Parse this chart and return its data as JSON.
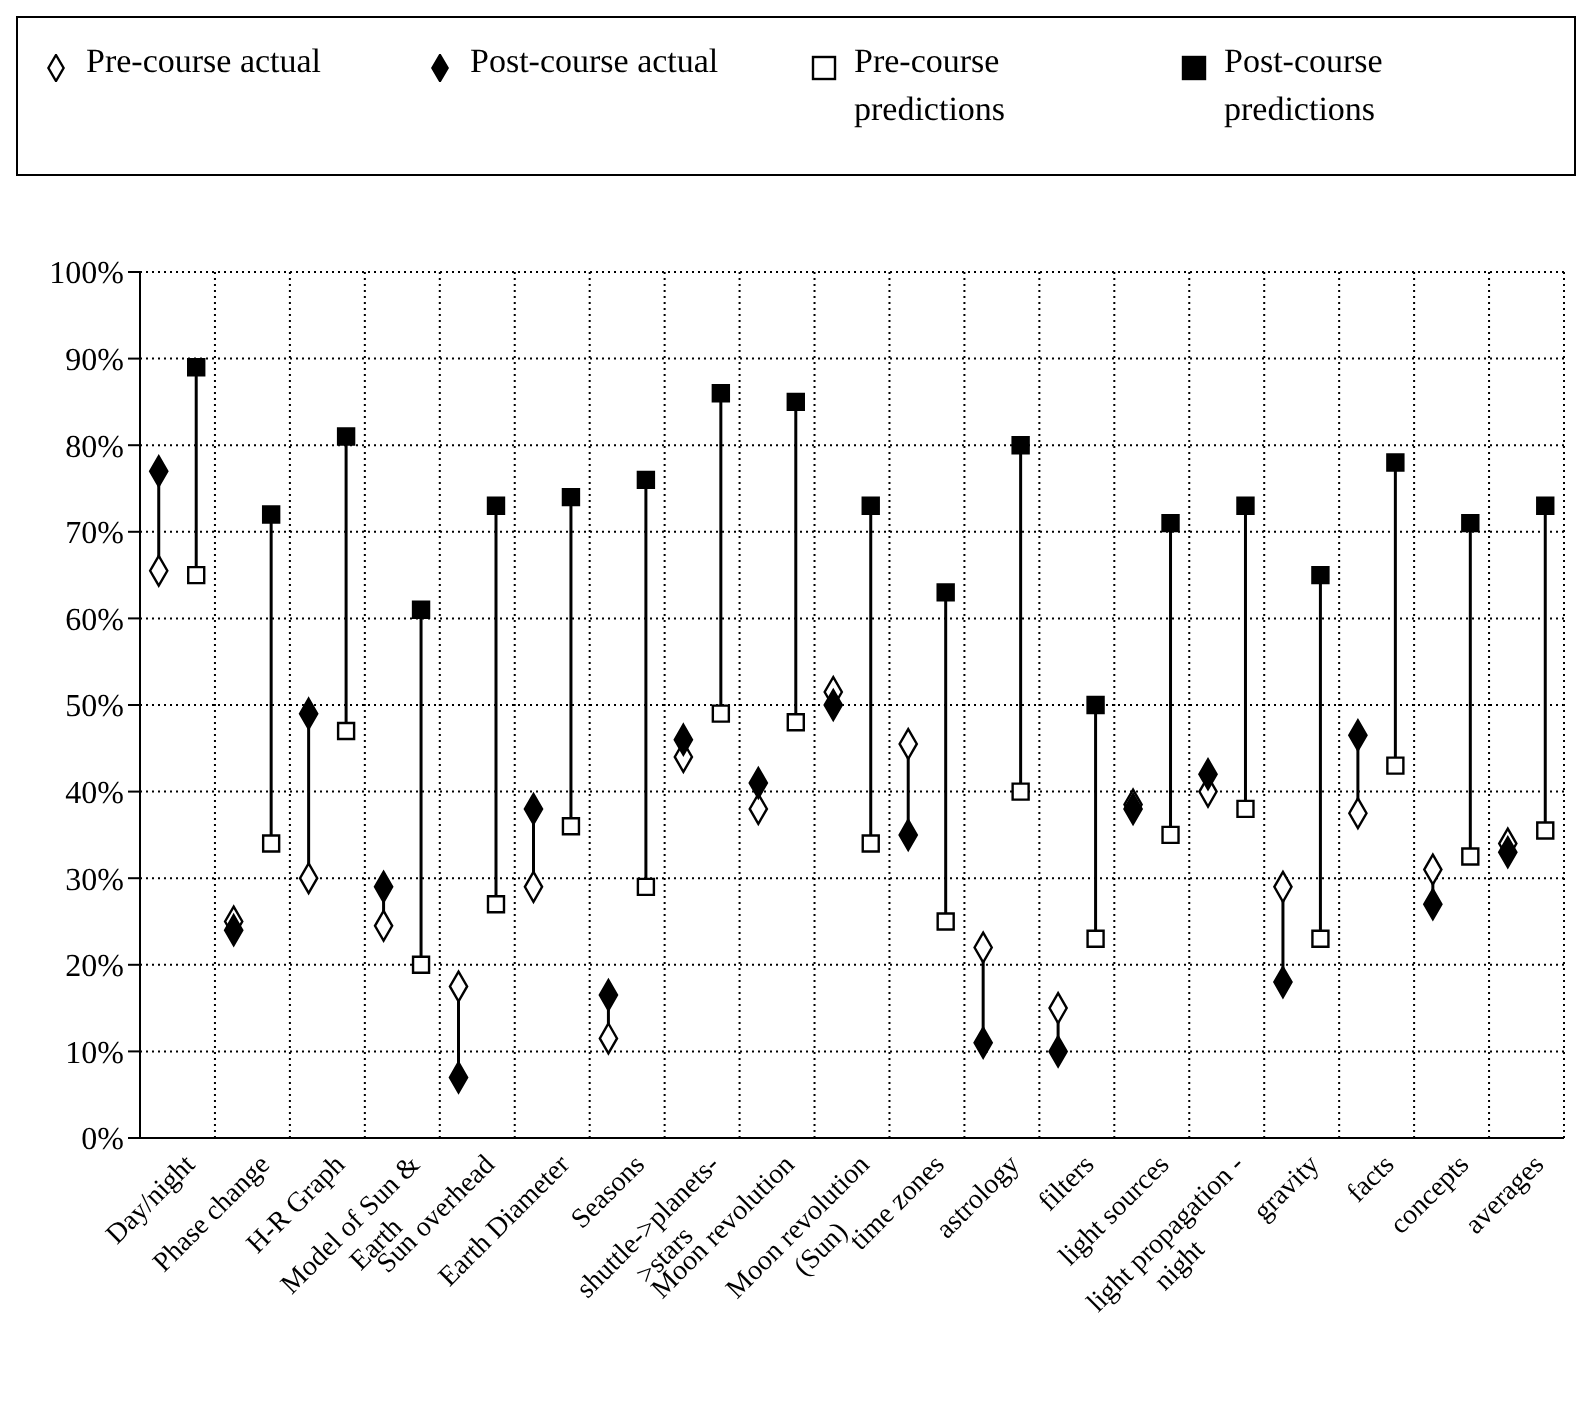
{
  "chart_data": {
    "type": "scatter",
    "categories": [
      null,
      "Day/night",
      null,
      "Phase change",
      null,
      "H-R Graph",
      null,
      "Model of Sun & Earth",
      null,
      "Sun overhead",
      null,
      "Earth Diameter",
      null,
      "Seasons",
      null,
      "shuttle->planets->stars",
      null,
      "Moon revolution",
      null,
      "Moon revolution (Sun)",
      null,
      "time zones",
      null,
      "astrology",
      null,
      "filters",
      null,
      "light sources",
      null,
      "light propagation - night",
      null,
      "gravity",
      null,
      "facts",
      null,
      "concepts",
      null,
      "averages"
    ],
    "series": [
      {
        "name": "Pre-course actual",
        "color": "#ffffff",
        "marker": "diamond",
        "values": [
          65.5,
          null,
          25,
          null,
          30,
          null,
          24.5,
          null,
          17.5,
          null,
          29,
          null,
          11.5,
          null,
          44,
          null,
          38,
          null,
          51.5,
          null,
          45.5,
          null,
          22,
          null,
          15,
          null,
          38.5,
          null,
          40,
          null,
          29,
          null,
          37.5,
          null,
          31,
          null,
          34,
          null
        ]
      },
      {
        "name": "Post-course actual",
        "color": "#000000",
        "marker": "diamond",
        "values": [
          77,
          null,
          24,
          null,
          49,
          null,
          29,
          null,
          7,
          null,
          38,
          null,
          16.5,
          null,
          46,
          null,
          41,
          null,
          50,
          null,
          35,
          null,
          11,
          null,
          10,
          null,
          38,
          null,
          42,
          null,
          18,
          null,
          46.5,
          null,
          27,
          null,
          33,
          null
        ]
      },
      {
        "name": "Pre-course predictions",
        "color": "#ffffff",
        "marker": "square",
        "values": [
          null,
          65,
          null,
          34,
          null,
          47,
          null,
          20,
          null,
          27,
          null,
          36,
          null,
          29,
          null,
          49,
          null,
          48,
          null,
          34,
          null,
          25,
          null,
          40,
          null,
          23,
          null,
          35,
          null,
          38,
          null,
          23,
          null,
          43,
          null,
          32.5,
          null,
          35.5
        ]
      },
      {
        "name": "Post-course predictions",
        "color": "#000000",
        "marker": "square",
        "values": [
          null,
          89,
          null,
          72,
          null,
          81,
          null,
          61,
          null,
          73,
          null,
          74,
          null,
          76,
          null,
          86,
          null,
          85,
          null,
          73,
          null,
          63,
          null,
          80,
          null,
          50,
          null,
          71,
          null,
          73,
          null,
          65,
          null,
          78,
          null,
          71,
          null,
          73
        ]
      }
    ],
    "ylim": [
      0,
      100
    ],
    "yticks": [
      {
        "value": 0,
        "label": "0%"
      },
      {
        "value": 10,
        "label": "10%"
      },
      {
        "value": 20,
        "label": "20%"
      },
      {
        "value": 30,
        "label": "30%"
      },
      {
        "value": 40,
        "label": "40%"
      },
      {
        "value": 50,
        "label": "50%"
      },
      {
        "value": 60,
        "label": "60%"
      },
      {
        "value": 70,
        "label": "70%"
      },
      {
        "value": 80,
        "label": "80%"
      },
      {
        "value": 90,
        "label": "90%"
      },
      {
        "value": 100,
        "label": "100%"
      }
    ],
    "grid": true,
    "legend": "top"
  }
}
